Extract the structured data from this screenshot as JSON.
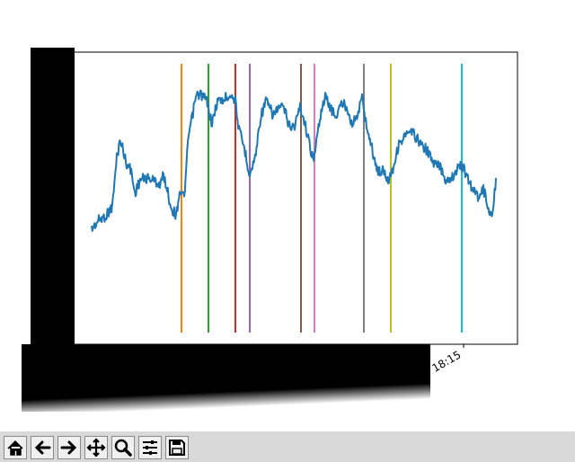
{
  "chart_data": {
    "type": "line",
    "title": "",
    "xlabel": "",
    "ylabel": "",
    "x_tick_labels_visible": [
      "18:15"
    ],
    "main_series_color": "#1f77b4",
    "vertical_lines": [
      {
        "color": "#ff7f0e"
      },
      {
        "color": "#2ca02c"
      },
      {
        "color": "#d62728"
      },
      {
        "color": "#9467bd"
      },
      {
        "color": "#8c564b"
      },
      {
        "color": "#e377c2"
      },
      {
        "color": "#7f7f7f"
      },
      {
        "color": "#bcbd22"
      },
      {
        "color": "#17becf"
      }
    ],
    "grid": false,
    "occlusions": [
      "left-black-block",
      "bottom-black-block"
    ]
  },
  "toolbar": {
    "buttons": [
      {
        "name": "home-button",
        "icon": "home-icon"
      },
      {
        "name": "back-button",
        "icon": "arrow-left-icon"
      },
      {
        "name": "forward-button",
        "icon": "arrow-right-icon"
      },
      {
        "name": "pan-button",
        "icon": "move-icon"
      },
      {
        "name": "zoom-button",
        "icon": "magnifier-icon"
      },
      {
        "name": "configure-subplots-button",
        "icon": "sliders-icon"
      },
      {
        "name": "save-button",
        "icon": "floppy-icon"
      }
    ]
  }
}
